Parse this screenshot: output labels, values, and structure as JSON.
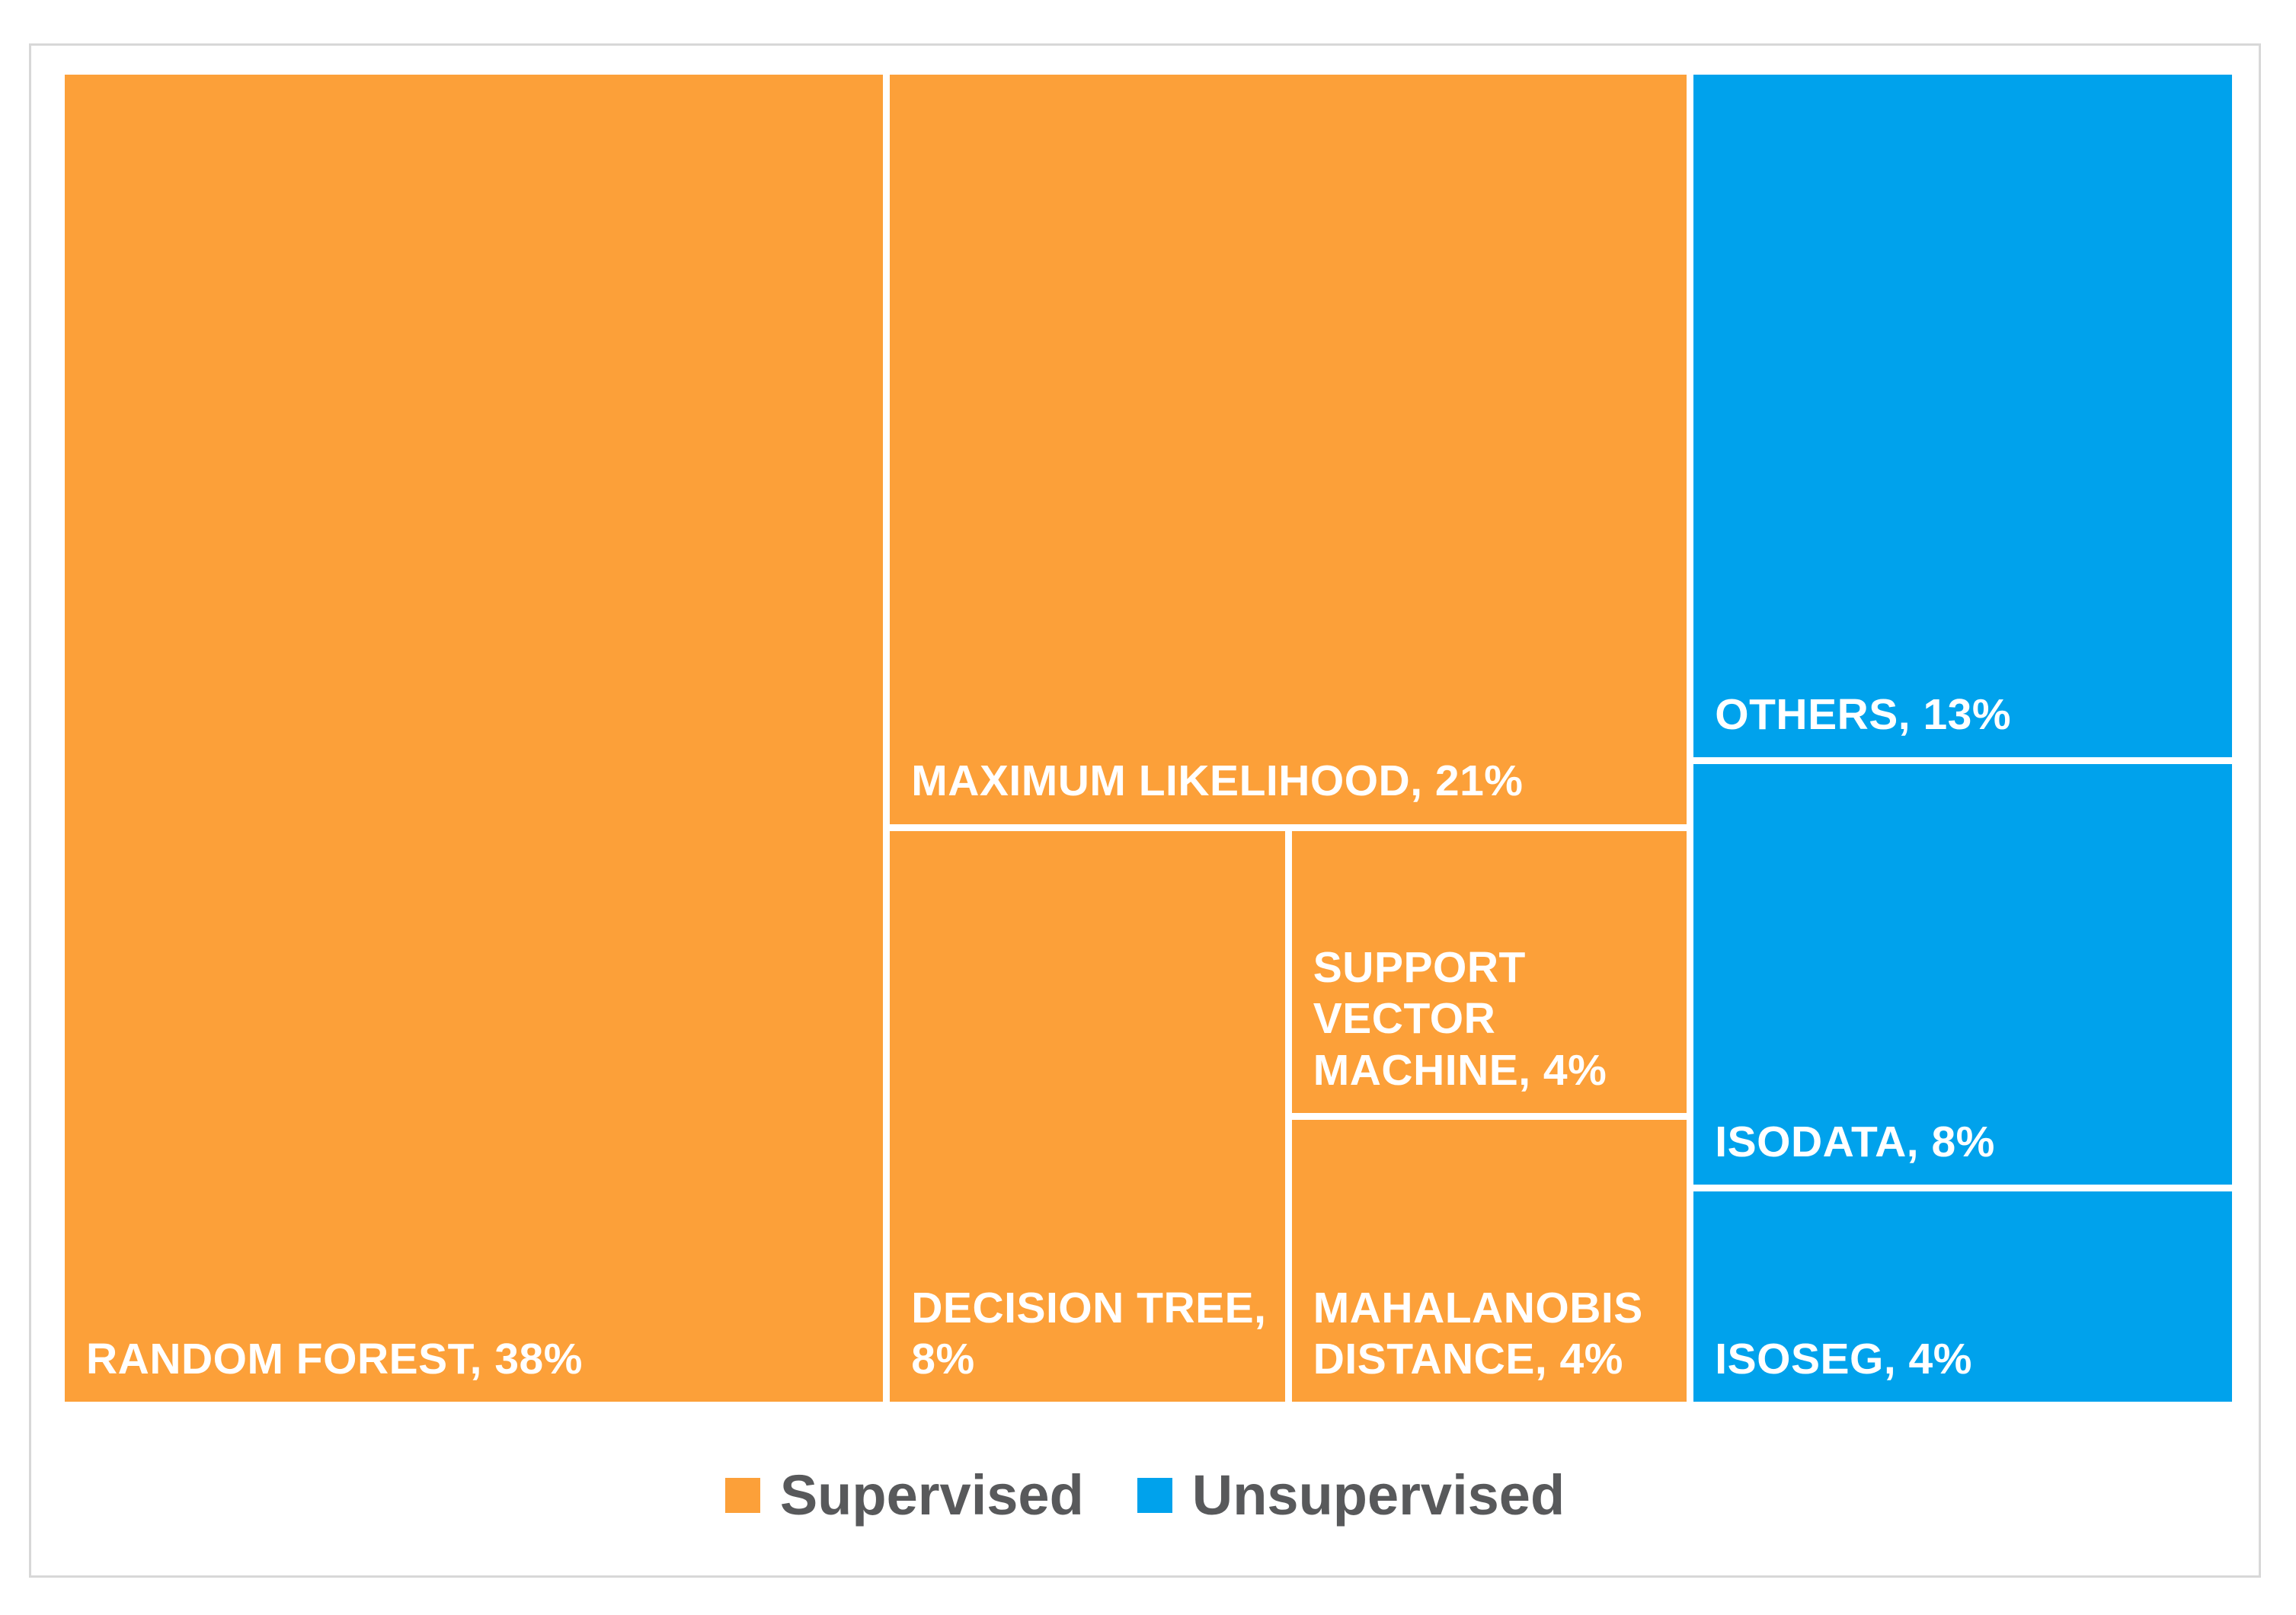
{
  "chart_data": {
    "type": "treemap",
    "title": "",
    "unit": "%",
    "legend_position": "bottom-center",
    "background_color": "#ffffff",
    "frame_border_color": "#d8d8d8",
    "label_text_color": "#ffffff",
    "legend_text_color": "#58595b",
    "groups": [
      {
        "name": "Supervised",
        "color": "#fca039",
        "items": [
          {
            "name": "Random Forest",
            "value": 38,
            "label": "RANDOM FOREST, 38%"
          },
          {
            "name": "Maximum Likelihood",
            "value": 21,
            "label": "MAXIMUM LIKELIHOOD, 21%"
          },
          {
            "name": "Decision Tree",
            "value": 8,
            "label": "DECISION TREE, 8%"
          },
          {
            "name": "Support Vector Machine",
            "value": 4,
            "label": "SUPPORT VECTOR MACHINE, 4%"
          },
          {
            "name": "Mahalanobis Distance",
            "value": 4,
            "label": "MAHALANOBIS DISTANCE, 4%"
          }
        ]
      },
      {
        "name": "Unsupervised",
        "color": "#00a2ec",
        "items": [
          {
            "name": "Others",
            "value": 13,
            "label": "OTHERS, 13%"
          },
          {
            "name": "Isodata",
            "value": 8,
            "label": "ISODATA, 8%"
          },
          {
            "name": "Isoseg",
            "value": 4,
            "label": "ISOSEG, 4%"
          }
        ]
      }
    ]
  }
}
